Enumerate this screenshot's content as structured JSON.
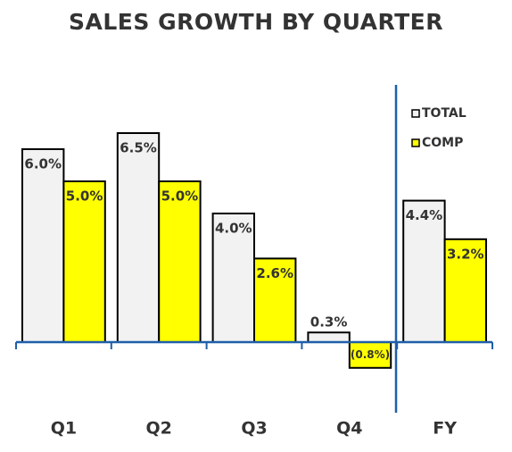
{
  "chart_data": {
    "type": "bar",
    "title": "SALES GROWTH BY QUARTER",
    "categories": [
      "Q1",
      "Q2",
      "Q3",
      "Q4",
      "FY"
    ],
    "series": [
      {
        "name": "TOTAL",
        "color": "#f2f2f2",
        "values": [
          6.0,
          6.5,
          4.0,
          0.3,
          4.4
        ],
        "value_labels": [
          "6.0%",
          "6.5%",
          "4.0%",
          "0.3%",
          "4.4%"
        ]
      },
      {
        "name": "COMP",
        "color": "#ffff00",
        "values": [
          5.0,
          5.0,
          2.6,
          -0.8,
          3.2
        ],
        "value_labels": [
          "5.0%",
          "5.0%",
          "2.6%",
          "(0.8%)",
          "3.2%"
        ]
      }
    ],
    "ylim": [
      -2,
      8
    ],
    "legend": "top-right"
  }
}
